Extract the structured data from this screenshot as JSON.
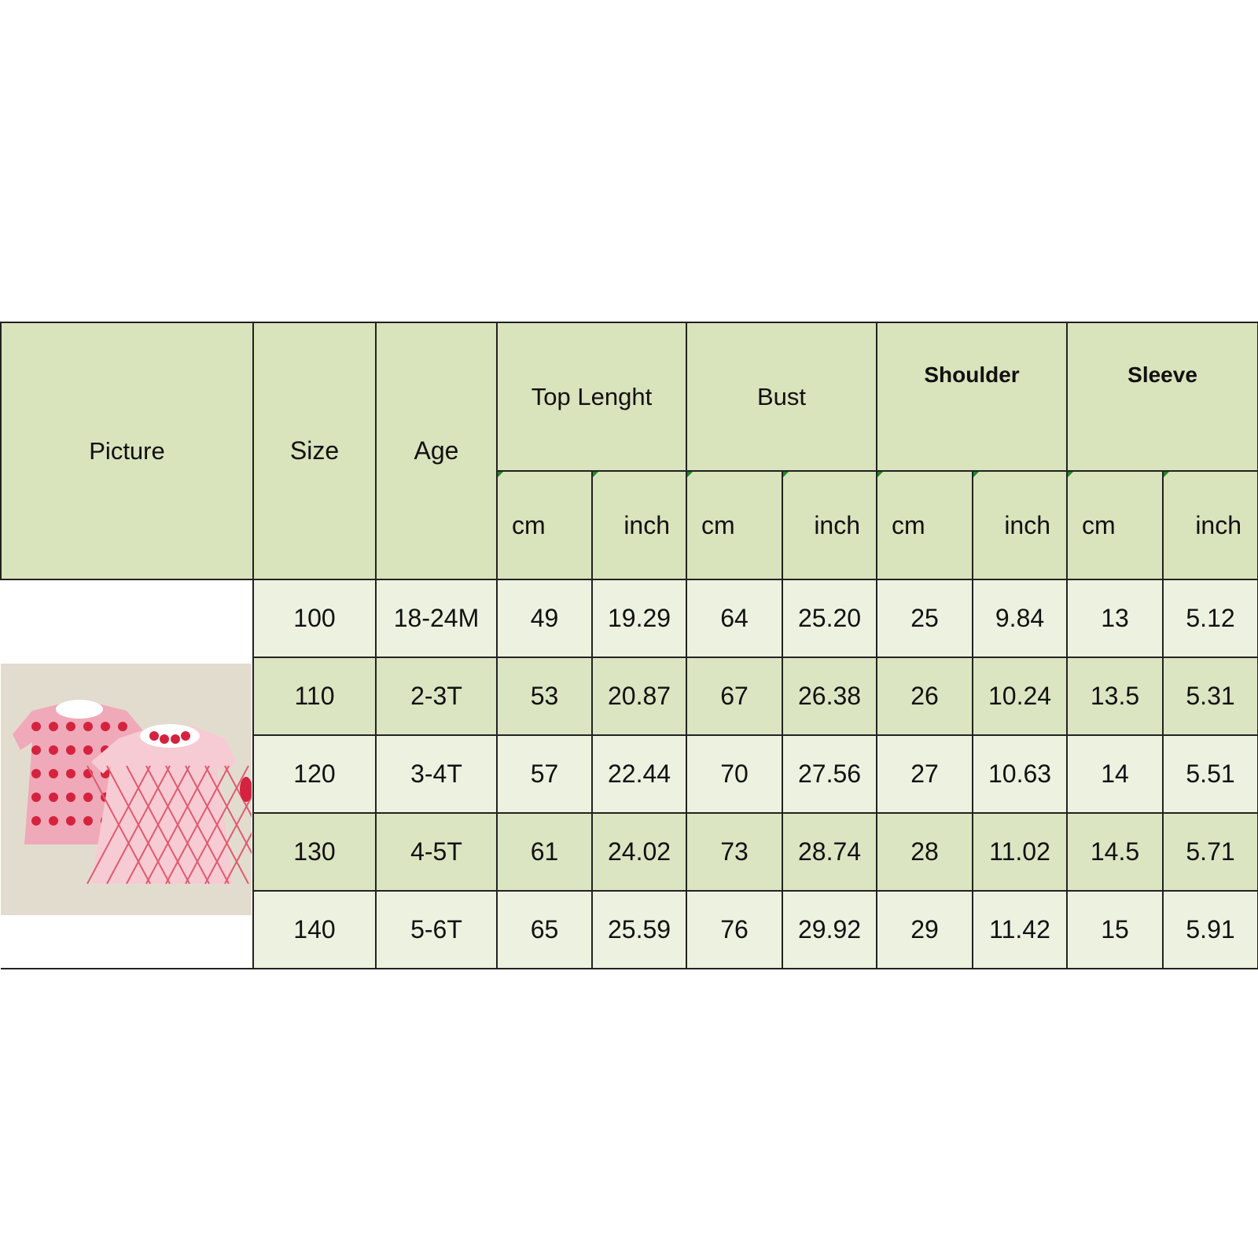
{
  "headers": {
    "picture": "Picture",
    "size": "Size",
    "age": "Age",
    "top_length": "Top Lenght",
    "bust": "Bust",
    "shoulder": "Shoulder",
    "sleeve": "Sleeve",
    "cm": "cm",
    "inch": "inch"
  },
  "colors": {
    "header_bg": "#d9e3bc",
    "row_light": "#edf1e0",
    "row_dark": "#dbe5c2"
  },
  "picture_icon": "product-photo-two-pink-heart-dresses",
  "rows": [
    {
      "size": "100",
      "age": "18-24M",
      "top_cm": "49",
      "top_in": "19.29",
      "bust_cm": "64",
      "bust_in": "25.20",
      "shoulder_cm": "25",
      "shoulder_in": "9.84",
      "sleeve_cm": "13",
      "sleeve_in": "5.12"
    },
    {
      "size": "110",
      "age": "2-3T",
      "top_cm": "53",
      "top_in": "20.87",
      "bust_cm": "67",
      "bust_in": "26.38",
      "shoulder_cm": "26",
      "shoulder_in": "10.24",
      "sleeve_cm": "13.5",
      "sleeve_in": "5.31"
    },
    {
      "size": "120",
      "age": "3-4T",
      "top_cm": "57",
      "top_in": "22.44",
      "bust_cm": "70",
      "bust_in": "27.56",
      "shoulder_cm": "27",
      "shoulder_in": "10.63",
      "sleeve_cm": "14",
      "sleeve_in": "5.51"
    },
    {
      "size": "130",
      "age": "4-5T",
      "top_cm": "61",
      "top_in": "24.02",
      "bust_cm": "73",
      "bust_in": "28.74",
      "shoulder_cm": "28",
      "shoulder_in": "11.02",
      "sleeve_cm": "14.5",
      "sleeve_in": "5.71"
    },
    {
      "size": "140",
      "age": "5-6T",
      "top_cm": "65",
      "top_in": "25.59",
      "bust_cm": "76",
      "bust_in": "29.92",
      "shoulder_cm": "29",
      "shoulder_in": "11.42",
      "sleeve_cm": "15",
      "sleeve_in": "5.91"
    }
  ]
}
